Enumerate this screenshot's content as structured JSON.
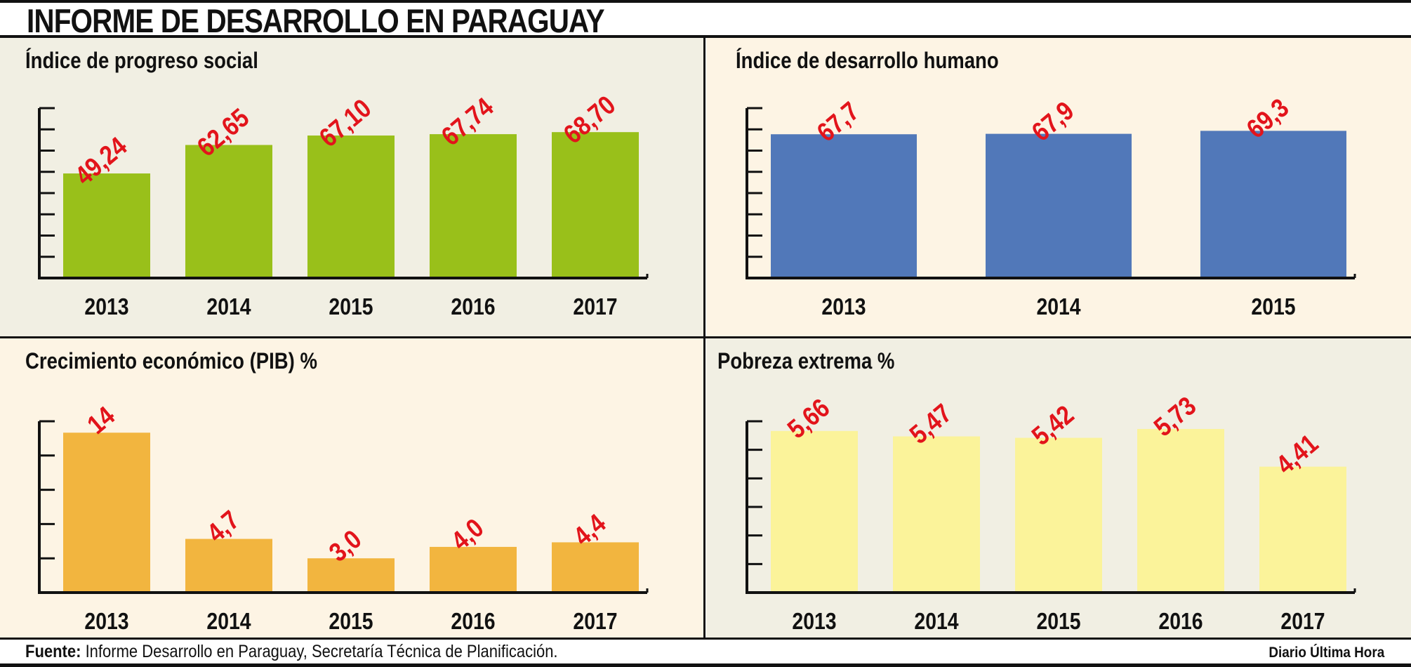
{
  "header": {
    "title": "INFORME DE DESARROLLO EN PARAGUAY"
  },
  "footer": {
    "source_label": "Fuente:",
    "source_text": "Informe Desarrollo en Paraguay,  Secretaría Técnica de Planificación.",
    "brand": "Diario Última Hora"
  },
  "colors": {
    "label_red": "#e2141b",
    "panel_bg_gray": "#f1efe3",
    "panel_bg_cream": "#fdf4e4",
    "green_bar": "#99c01a",
    "blue_bar": "#5178b9",
    "orange_bar": "#f2b53f",
    "yellow_bar": "#fbf39a"
  },
  "chart_data": [
    {
      "type": "bar",
      "title": "Índice de progreso social",
      "categories": [
        "2013",
        "2014",
        "2015",
        "2016",
        "2017"
      ],
      "values": [
        49.24,
        62.65,
        67.1,
        67.74,
        68.7
      ],
      "value_labels": [
        "49,24",
        "62,65",
        "67,10",
        "67,74",
        "68,70"
      ],
      "ylim": [
        0,
        80
      ],
      "bar_color": "#99c01a",
      "background": "#f1efe3"
    },
    {
      "type": "bar",
      "title": "Índice de desarrollo humano",
      "categories": [
        "2013",
        "2014",
        "2015"
      ],
      "values": [
        67.7,
        67.9,
        69.3
      ],
      "value_labels": [
        "67,7",
        "67,9",
        "69,3"
      ],
      "ylim": [
        0,
        80
      ],
      "bar_color": "#5178b9",
      "background": "#fdf4e4"
    },
    {
      "type": "bar",
      "title": "Crecimiento económico  (PIB) %",
      "categories": [
        "2013",
        "2014",
        "2015",
        "2016",
        "2017"
      ],
      "values": [
        14,
        4.7,
        3.0,
        4.0,
        4.4
      ],
      "value_labels": [
        "14",
        "4,7",
        "3,0",
        "4,0",
        "4,4"
      ],
      "ylim": [
        0,
        15
      ],
      "bar_color": "#f2b53f",
      "background": "#fdf4e4"
    },
    {
      "type": "bar",
      "title": "Pobreza extrema %",
      "categories": [
        "2013",
        "2014",
        "2015",
        "2016",
        "2017"
      ],
      "values": [
        5.66,
        5.47,
        5.42,
        5.73,
        4.41
      ],
      "value_labels": [
        "5,66",
        "5,47",
        "5,42",
        "5,73",
        "4,41"
      ],
      "ylim": [
        0,
        6
      ],
      "bar_color": "#fbf39a",
      "background": "#f1efe3"
    }
  ]
}
